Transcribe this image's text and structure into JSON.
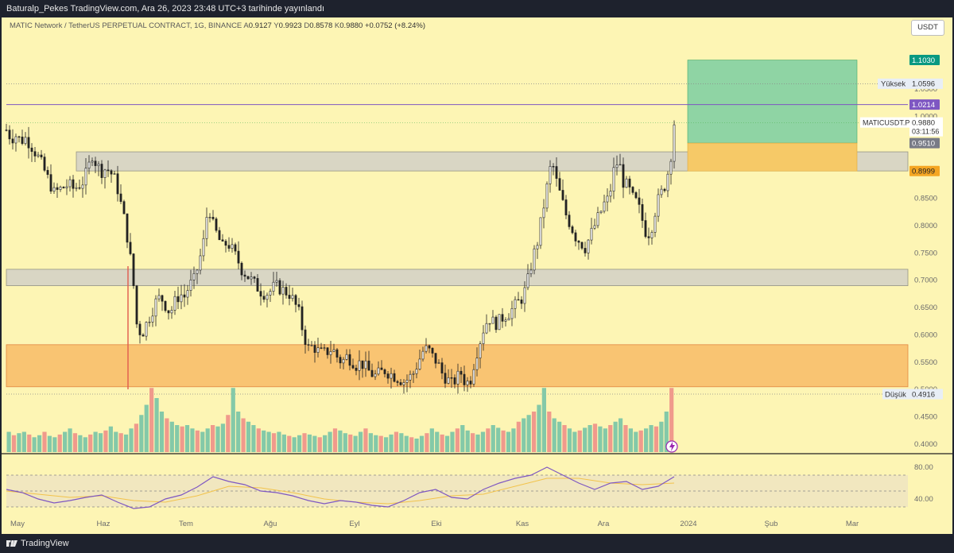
{
  "header": {
    "publish_line": "Baturalp_Pekes TradingView.com, Ara 26, 2023 23:48 UTC+3 tarihinde yayınlandı"
  },
  "legend": {
    "symbol_title": "MATIC Network / TetherUS PERPETUAL CONTRACT, 1G, BINANCE",
    "open_key": "A",
    "open": "0.9127",
    "high_key": "Y",
    "high": "0.9923",
    "low_key": "D",
    "low": "0.8578",
    "close_key": "K",
    "close": "0.9880",
    "change": "+0.0752 (+8.24%)"
  },
  "currency_button": "USDT",
  "price_axis": {
    "ticks": [
      "1.0500",
      "1.0000",
      "0.9500",
      "0.9000",
      "0.8500",
      "0.8000",
      "0.7500",
      "0.7000",
      "0.6500",
      "0.6000",
      "0.5500",
      "0.5000",
      "0.4500",
      "0.4000"
    ],
    "tick_values": [
      1.05,
      1.0,
      0.95,
      0.9,
      0.85,
      0.8,
      0.75,
      0.7,
      0.65,
      0.6,
      0.55,
      0.5,
      0.45,
      0.4
    ]
  },
  "price_labels": {
    "target": {
      "value": "1.1030",
      "color": "#089981"
    },
    "high": {
      "label": "Yüksek",
      "value": "1.0596"
    },
    "line": {
      "value": "1.0214",
      "color": "#7e57c2"
    },
    "symbol_name": "MATICUSDT.P",
    "last": {
      "value": "0.9880"
    },
    "countdown": "03:11:56",
    "entry": {
      "value": "0.9510"
    },
    "stop": {
      "value": "0.8999",
      "color": "#f5a623"
    },
    "low": {
      "label": "Düşük",
      "value": "0.4916"
    }
  },
  "rsi_axis": {
    "ticks": [
      "80.00",
      "40.00"
    ],
    "tick_values": [
      80,
      40
    ]
  },
  "time_axis": {
    "labels": [
      "May",
      "Haz",
      "Tem",
      "Ağu",
      "Eyl",
      "Eki",
      "Kas",
      "Ara",
      "2024",
      "Şub",
      "Mar"
    ]
  },
  "footer": {
    "brand": "TradingView"
  },
  "chart_data": {
    "type": "candlestick",
    "symbol": "MATICUSDT.P",
    "interval": "1G",
    "y_range": [
      0.4,
      1.1
    ],
    "last_price": 0.988,
    "high_marker": 1.0596,
    "low_marker": 0.4916,
    "horizontal_line": 1.0214,
    "zones": [
      {
        "from": 0.9,
        "to": 0.935,
        "color": "#d6d3c6"
      },
      {
        "from": 0.69,
        "to": 0.72,
        "color": "#d6d3c6"
      },
      {
        "from": 0.505,
        "to": 0.582,
        "color": "#f9c26f"
      }
    ],
    "position": {
      "entry": 0.951,
      "target": 1.103,
      "stop": 0.8999
    },
    "close_path": [
      [
        0,
        0.975
      ],
      [
        3,
        0.96
      ],
      [
        6,
        0.965
      ],
      [
        9,
        0.955
      ],
      [
        12,
        0.96
      ],
      [
        15,
        0.95
      ],
      [
        18,
        0.935
      ],
      [
        21,
        0.92
      ],
      [
        24,
        0.9
      ],
      [
        27,
        0.88
      ],
      [
        30,
        0.86
      ],
      [
        33,
        0.865
      ],
      [
        36,
        0.87
      ],
      [
        39,
        0.875
      ],
      [
        42,
        0.868
      ],
      [
        45,
        0.872
      ],
      [
        48,
        0.88
      ],
      [
        51,
        0.9
      ],
      [
        54,
        0.93
      ],
      [
        57,
        0.91
      ],
      [
        60,
        0.9
      ],
      [
        63,
        0.905
      ],
      [
        66,
        0.895
      ],
      [
        69,
        0.88
      ],
      [
        72,
        0.84
      ],
      [
        75,
        0.8
      ],
      [
        78,
        0.74
      ],
      [
        80,
        0.69
      ],
      [
        82,
        0.62
      ],
      [
        85,
        0.6
      ],
      [
        88,
        0.62
      ],
      [
        91,
        0.64
      ],
      [
        94,
        0.66
      ],
      [
        97,
        0.67
      ],
      [
        100,
        0.655
      ],
      [
        103,
        0.64
      ],
      [
        106,
        0.66
      ],
      [
        109,
        0.675
      ],
      [
        112,
        0.67
      ],
      [
        115,
        0.69
      ],
      [
        118,
        0.7
      ],
      [
        121,
        0.73
      ],
      [
        124,
        0.77
      ],
      [
        127,
        0.84
      ],
      [
        130,
        0.8
      ],
      [
        133,
        0.78
      ],
      [
        136,
        0.76
      ],
      [
        139,
        0.77
      ],
      [
        142,
        0.755
      ],
      [
        145,
        0.74
      ],
      [
        148,
        0.72
      ],
      [
        151,
        0.71
      ],
      [
        154,
        0.7
      ],
      [
        157,
        0.69
      ],
      [
        160,
        0.68
      ],
      [
        163,
        0.675
      ],
      [
        166,
        0.68
      ],
      [
        169,
        0.69
      ],
      [
        172,
        0.685
      ],
      [
        175,
        0.68
      ],
      [
        178,
        0.675
      ],
      [
        181,
        0.66
      ],
      [
        184,
        0.64
      ],
      [
        187,
        0.6
      ],
      [
        190,
        0.575
      ],
      [
        193,
        0.58
      ],
      [
        196,
        0.57
      ],
      [
        199,
        0.565
      ],
      [
        202,
        0.57
      ],
      [
        205,
        0.575
      ],
      [
        208,
        0.56
      ],
      [
        211,
        0.55
      ],
      [
        214,
        0.56
      ],
      [
        217,
        0.555
      ],
      [
        220,
        0.545
      ],
      [
        223,
        0.55
      ],
      [
        226,
        0.54
      ],
      [
        229,
        0.53
      ],
      [
        232,
        0.525
      ],
      [
        235,
        0.53
      ],
      [
        238,
        0.535
      ],
      [
        241,
        0.53
      ],
      [
        244,
        0.525
      ],
      [
        247,
        0.52
      ],
      [
        250,
        0.515
      ],
      [
        253,
        0.52
      ],
      [
        256,
        0.53
      ],
      [
        259,
        0.55
      ],
      [
        262,
        0.57
      ],
      [
        265,
        0.575
      ],
      [
        268,
        0.56
      ],
      [
        271,
        0.55
      ],
      [
        274,
        0.53
      ],
      [
        277,
        0.52
      ],
      [
        280,
        0.51
      ],
      [
        283,
        0.52
      ],
      [
        286,
        0.53
      ],
      [
        289,
        0.51
      ],
      [
        292,
        0.52
      ],
      [
        295,
        0.56
      ],
      [
        298,
        0.59
      ],
      [
        301,
        0.62
      ],
      [
        304,
        0.63
      ],
      [
        307,
        0.62
      ],
      [
        310,
        0.625
      ],
      [
        313,
        0.635
      ],
      [
        316,
        0.64
      ],
      [
        319,
        0.65
      ],
      [
        322,
        0.66
      ],
      [
        325,
        0.67
      ],
      [
        328,
        0.7
      ],
      [
        331,
        0.74
      ],
      [
        334,
        0.77
      ],
      [
        337,
        0.82
      ],
      [
        340,
        0.87
      ],
      [
        343,
        0.92
      ],
      [
        346,
        0.88
      ],
      [
        349,
        0.85
      ],
      [
        352,
        0.82
      ],
      [
        355,
        0.8
      ],
      [
        358,
        0.78
      ],
      [
        361,
        0.77
      ],
      [
        364,
        0.76
      ],
      [
        367,
        0.78
      ],
      [
        370,
        0.8
      ],
      [
        373,
        0.82
      ],
      [
        376,
        0.84
      ],
      [
        379,
        0.85
      ],
      [
        382,
        0.9
      ],
      [
        385,
        0.92
      ],
      [
        388,
        0.88
      ],
      [
        391,
        0.87
      ],
      [
        394,
        0.85
      ],
      [
        397,
        0.84
      ],
      [
        400,
        0.81
      ],
      [
        403,
        0.78
      ],
      [
        406,
        0.8
      ],
      [
        409,
        0.84
      ],
      [
        412,
        0.86
      ],
      [
        415,
        0.88
      ],
      [
        418,
        0.93
      ],
      [
        420,
        0.988
      ]
    ],
    "volume_relative": [
      0.3,
      0.25,
      0.28,
      0.3,
      0.26,
      0.22,
      0.25,
      0.3,
      0.24,
      0.22,
      0.26,
      0.3,
      0.35,
      0.28,
      0.25,
      0.22,
      0.26,
      0.3,
      0.28,
      0.32,
      0.38,
      0.3,
      0.28,
      0.26,
      0.35,
      0.42,
      0.55,
      0.7,
      0.95,
      0.8,
      0.6,
      0.5,
      0.45,
      0.4,
      0.38,
      0.4,
      0.35,
      0.32,
      0.3,
      0.35,
      0.4,
      0.38,
      0.42,
      0.55,
      0.95,
      0.6,
      0.5,
      0.45,
      0.4,
      0.35,
      0.32,
      0.3,
      0.28,
      0.3,
      0.26,
      0.24,
      0.22,
      0.25,
      0.28,
      0.26,
      0.24,
      0.22,
      0.25,
      0.3,
      0.35,
      0.32,
      0.28,
      0.26,
      0.24,
      0.3,
      0.35,
      0.28,
      0.25,
      0.24,
      0.22,
      0.26,
      0.3,
      0.28,
      0.24,
      0.22,
      0.2,
      0.24,
      0.28,
      0.35,
      0.3,
      0.26,
      0.24,
      0.3,
      0.35,
      0.4,
      0.32,
      0.28,
      0.26,
      0.3,
      0.35,
      0.4,
      0.36,
      0.32,
      0.3,
      0.35,
      0.45,
      0.5,
      0.55,
      0.6,
      0.7,
      0.95,
      0.6,
      0.5,
      0.45,
      0.4,
      0.35,
      0.3,
      0.32,
      0.36,
      0.4,
      0.42,
      0.38,
      0.35,
      0.4,
      0.45,
      0.5,
      0.4,
      0.35,
      0.3,
      0.32,
      0.35,
      0.4,
      0.38,
      0.45,
      0.6,
      0.95
    ],
    "rsi": {
      "y_range": [
        20,
        90
      ],
      "upper_band": 70,
      "lower_band": 30,
      "mid": 50,
      "values": [
        [
          0,
          52
        ],
        [
          10,
          48
        ],
        [
          20,
          40
        ],
        [
          30,
          35
        ],
        [
          40,
          38
        ],
        [
          50,
          42
        ],
        [
          60,
          45
        ],
        [
          70,
          36
        ],
        [
          80,
          28
        ],
        [
          90,
          30
        ],
        [
          100,
          40
        ],
        [
          110,
          45
        ],
        [
          120,
          55
        ],
        [
          130,
          68
        ],
        [
          140,
          62
        ],
        [
          150,
          58
        ],
        [
          160,
          50
        ],
        [
          170,
          48
        ],
        [
          180,
          44
        ],
        [
          190,
          38
        ],
        [
          200,
          34
        ],
        [
          210,
          38
        ],
        [
          220,
          36
        ],
        [
          230,
          32
        ],
        [
          240,
          30
        ],
        [
          250,
          38
        ],
        [
          260,
          48
        ],
        [
          270,
          52
        ],
        [
          280,
          42
        ],
        [
          290,
          40
        ],
        [
          300,
          52
        ],
        [
          310,
          60
        ],
        [
          320,
          66
        ],
        [
          330,
          70
        ],
        [
          340,
          80
        ],
        [
          350,
          70
        ],
        [
          360,
          60
        ],
        [
          370,
          52
        ],
        [
          380,
          60
        ],
        [
          390,
          62
        ],
        [
          400,
          52
        ],
        [
          410,
          56
        ],
        [
          420,
          68
        ]
      ],
      "ma": [
        [
          0,
          50
        ],
        [
          20,
          46
        ],
        [
          40,
          42
        ],
        [
          60,
          44
        ],
        [
          80,
          38
        ],
        [
          100,
          36
        ],
        [
          120,
          44
        ],
        [
          140,
          56
        ],
        [
          160,
          54
        ],
        [
          180,
          48
        ],
        [
          200,
          40
        ],
        [
          220,
          36
        ],
        [
          240,
          34
        ],
        [
          260,
          38
        ],
        [
          280,
          44
        ],
        [
          300,
          46
        ],
        [
          320,
          56
        ],
        [
          340,
          66
        ],
        [
          360,
          66
        ],
        [
          380,
          60
        ],
        [
          400,
          58
        ],
        [
          420,
          60
        ]
      ]
    }
  }
}
